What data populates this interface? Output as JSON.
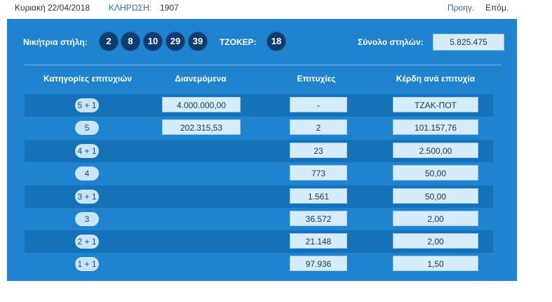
{
  "topbar": {
    "date": "Κυριακή 22/04/2018",
    "draw_label": "ΚΛΗΡΩΣΗ:",
    "draw_number": "1907",
    "prev": "Προηγ.",
    "next": "Επόμ."
  },
  "winning": {
    "label": "Νικήτρια στήλη:",
    "numbers": [
      "2",
      "8",
      "10",
      "29",
      "39"
    ],
    "joker_label": "ΤΖΟΚΕΡ:",
    "joker": "18",
    "total_label": "Σύνολο στηλών:",
    "total": "5.825.475"
  },
  "table": {
    "headers": [
      "Κατηγορίες επιτυχιών",
      "Διανεμόμενα",
      "Επιτυχίες",
      "Κέρδη ανά επιτυχία"
    ],
    "rows": [
      {
        "cat": "5 + 1",
        "dist": "4.000.000,00",
        "wins": "-",
        "prize": "ΤΖΑΚ-ΠΟΤ"
      },
      {
        "cat": "5",
        "dist": "202.315,53",
        "wins": "2",
        "prize": "101.157,76"
      },
      {
        "cat": "4 + 1",
        "dist": "",
        "wins": "23",
        "prize": "2.500,00"
      },
      {
        "cat": "4",
        "dist": "",
        "wins": "773",
        "prize": "50,00"
      },
      {
        "cat": "3 + 1",
        "dist": "",
        "wins": "1.561",
        "prize": "50,00"
      },
      {
        "cat": "3",
        "dist": "",
        "wins": "36.572",
        "prize": "2,00"
      },
      {
        "cat": "2 + 1",
        "dist": "",
        "wins": "21.148",
        "prize": "2,00"
      },
      {
        "cat": "1 + 1",
        "dist": "",
        "wins": "97.936",
        "prize": "1,50"
      }
    ]
  },
  "colors": {
    "panel": "#1f83cf",
    "row_dark": "#1571b8",
    "ball": "#0d3d73",
    "box": "#d6ecfa",
    "link": "#2a6fb3"
  }
}
